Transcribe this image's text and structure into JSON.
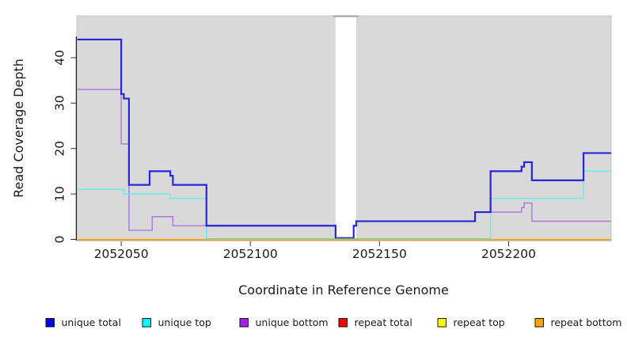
{
  "chart_data": {
    "type": "line",
    "subtype": "step",
    "title": "",
    "xlabel": "Coordinate in Reference Genome",
    "ylabel": "Read Coverage Depth",
    "xlim": [
      2052033,
      2052240
    ],
    "ylim": [
      0,
      49
    ],
    "x_ticks": [
      2052050,
      2052100,
      2052150,
      2052200
    ],
    "y_ticks": [
      0,
      10,
      20,
      30,
      40
    ],
    "grid": false,
    "legend_position": "bottom",
    "plot_background": "#d9d9d9",
    "gap_region": {
      "x0": 2052133,
      "x1": 2052141,
      "color": "#ffffff",
      "cap_color": "#a0a0a0"
    },
    "series": [
      {
        "name": "repeat total",
        "color": "#e00000",
        "width": 1.2,
        "dy0": 0.5,
        "segments": [
          [
            2052033,
            2052240,
            0
          ]
        ]
      },
      {
        "name": "repeat top",
        "color": "#ffff00",
        "width": 1.2,
        "dy0": 0.5,
        "segments": [
          [
            2052033,
            2052240,
            0
          ]
        ]
      },
      {
        "name": "repeat bottom",
        "color": "#ffa500",
        "width": 1.7,
        "dy0": 0.5,
        "segments": [
          [
            2052033,
            2052240,
            0
          ]
        ]
      },
      {
        "name": "unique bottom",
        "color": "#ab6fdc",
        "width": 1.3,
        "dy0": -1.6,
        "segments": [
          [
            2052033,
            2052050,
            33
          ],
          [
            2052050,
            2052053,
            21
          ],
          [
            2052053,
            2052062,
            2
          ],
          [
            2052062,
            2052070,
            5
          ],
          [
            2052070,
            2052133,
            3
          ],
          [
            2052133,
            2052140,
            0
          ],
          [
            2052140,
            2052141,
            3
          ],
          [
            2052141,
            2052187,
            4
          ],
          [
            2052187,
            2052205,
            6
          ],
          [
            2052205,
            2052206,
            7
          ],
          [
            2052206,
            2052209,
            8
          ],
          [
            2052209,
            2052240,
            4
          ]
        ]
      },
      {
        "name": "unique top",
        "color": "#63eded",
        "width": 1.4,
        "dy0": -0.6,
        "segments": [
          [
            2052033,
            2052051,
            11
          ],
          [
            2052051,
            2052069,
            10
          ],
          [
            2052069,
            2052083,
            9
          ],
          [
            2052083,
            2052193,
            0
          ],
          [
            2052193,
            2052229,
            9
          ],
          [
            2052229,
            2052240,
            15
          ]
        ]
      },
      {
        "name": "unique total",
        "color": "#2a24dc",
        "width": 2.2,
        "dy0": -1.6,
        "segments": [
          [
            2052033,
            2052050,
            44
          ],
          [
            2052050,
            2052051,
            32
          ],
          [
            2052051,
            2052053,
            31
          ],
          [
            2052053,
            2052061,
            12
          ],
          [
            2052061,
            2052069,
            15
          ],
          [
            2052069,
            2052070,
            14
          ],
          [
            2052070,
            2052083,
            12
          ],
          [
            2052083,
            2052133,
            3
          ],
          [
            2052133,
            2052140,
            0
          ],
          [
            2052140,
            2052141,
            3
          ],
          [
            2052141,
            2052187,
            4
          ],
          [
            2052187,
            2052193,
            6
          ],
          [
            2052193,
            2052205,
            15
          ],
          [
            2052205,
            2052206,
            16
          ],
          [
            2052206,
            2052209,
            17
          ],
          [
            2052209,
            2052229,
            13
          ],
          [
            2052229,
            2052240,
            19
          ]
        ]
      }
    ],
    "zero_overlap_segment": {
      "x0": 2052083,
      "x1": 2052193,
      "value": 0,
      "color": "#8ec98e",
      "width": 1.4
    },
    "legend": [
      {
        "label": "unique total",
        "color": "#0000ee"
      },
      {
        "label": "unique top",
        "color": "#00ffff"
      },
      {
        "label": "unique bottom",
        "color": "#a020f0"
      },
      {
        "label": "repeat total",
        "color": "#ff0000"
      },
      {
        "label": "repeat top",
        "color": "#ffff00"
      },
      {
        "label": "repeat bottom",
        "color": "#ffa500"
      }
    ]
  }
}
